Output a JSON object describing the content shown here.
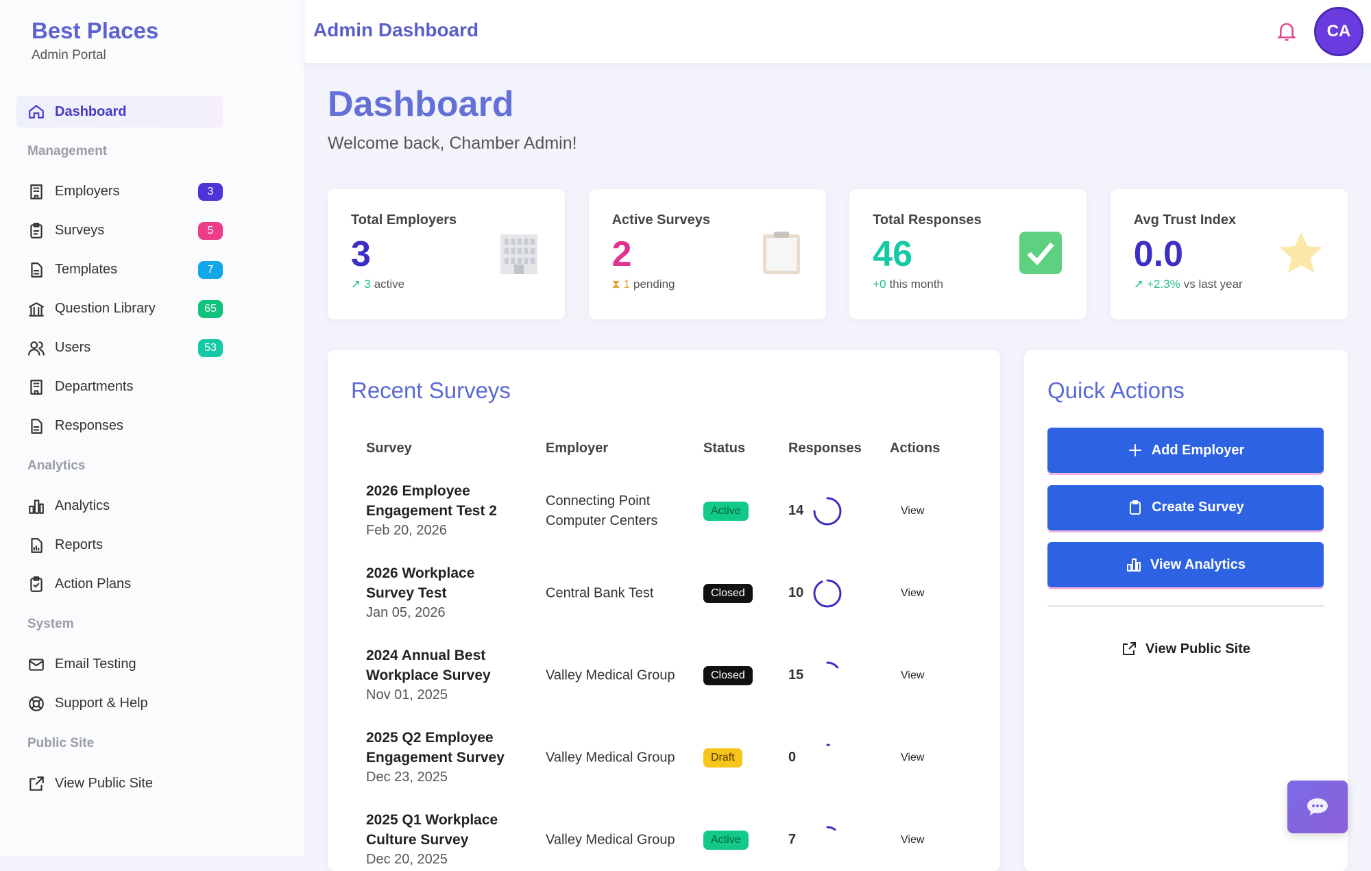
{
  "sidebar": {
    "brand": "Best Places",
    "subtitle": "Admin Portal",
    "active": "Dashboard",
    "groups": [
      {
        "heading": "Management",
        "items": [
          {
            "label": "Employers",
            "badge": 3
          },
          {
            "label": "Surveys",
            "badge": 5
          },
          {
            "label": "Templates",
            "badge": 7
          },
          {
            "label": "Question Library",
            "badge": 65
          },
          {
            "label": "Users",
            "badge": 53
          },
          {
            "label": "Departments"
          },
          {
            "label": "Responses"
          }
        ]
      },
      {
        "heading": "Analytics",
        "items": [
          {
            "label": "Analytics"
          },
          {
            "label": "Reports"
          },
          {
            "label": "Action Plans"
          }
        ]
      },
      {
        "heading": "System",
        "items": [
          {
            "label": "Email Testing"
          },
          {
            "label": "Support & Help"
          }
        ]
      },
      {
        "heading": "Public Site",
        "items": [
          {
            "label": "View Public Site"
          }
        ]
      }
    ]
  },
  "header": {
    "title": "Admin Dashboard",
    "avatar": "CA"
  },
  "page": {
    "title": "Dashboard",
    "welcome": "Welcome back, Chamber Admin!"
  },
  "stats": [
    {
      "label": "Total Employers",
      "value": "3",
      "note_value": "3",
      "note_text": "active"
    },
    {
      "label": "Active Surveys",
      "value": "2",
      "note_value": "1",
      "note_text": "pending"
    },
    {
      "label": "Total Responses",
      "value": "46",
      "note_value": "+0",
      "note_text": "this month"
    },
    {
      "label": "Avg Trust Index",
      "value": "0.0",
      "note_value": "+2.3%",
      "note_text": "vs last year"
    }
  ],
  "recent_surveys": {
    "title": "Recent Surveys",
    "columns": [
      "Survey",
      "Employer",
      "Status",
      "Responses",
      "Actions"
    ],
    "rows": [
      {
        "survey": "2026 Employee Engagement Test 2",
        "date": "Feb 20, 2026",
        "employer": "Connecting Point Computer Centers",
        "status": "Active",
        "responses": 14,
        "action": "View"
      },
      {
        "survey": "2026 Workplace Survey Test",
        "date": "Jan 05, 2026",
        "employer": "Central Bank Test",
        "status": "Closed",
        "responses": 10,
        "action": "View"
      },
      {
        "survey": "2024 Annual Best Workplace Survey",
        "date": "Nov 01, 2025",
        "employer": "Valley Medical Group",
        "status": "Closed",
        "responses": 15,
        "action": "View"
      },
      {
        "survey": "2025 Q2 Employee Engagement Survey",
        "date": "Dec 23, 2025",
        "employer": "Valley Medical Group",
        "status": "Draft",
        "responses": 0,
        "action": "View"
      },
      {
        "survey": "2025 Q1 Workplace Culture Survey",
        "date": "Dec 20, 2025",
        "employer": "Valley Medical Group",
        "status": "Active",
        "responses": 7,
        "action": "View"
      }
    ]
  },
  "quick_actions": {
    "title": "Quick Actions",
    "buttons": [
      "Add Employer",
      "Create Survey",
      "View Analytics"
    ],
    "link": "View Public Site"
  }
}
